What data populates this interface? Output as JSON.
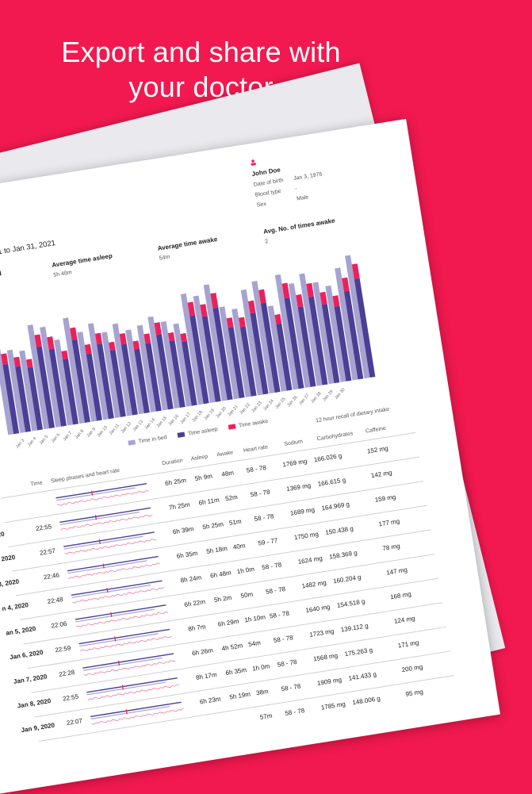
{
  "headline": {
    "line1": "Export and share with",
    "line2": "your doctor"
  },
  "report": {
    "title_fragment": "t",
    "date_range": "21 to Jan 31, 2021",
    "patient": {
      "name": "John Doe",
      "dob_label": "Date of birth",
      "dob_value": "Jan 3, 1976",
      "blood_label": "Blood type",
      "blood_value": "-",
      "sex_label": "Sex",
      "sex_value": "Male"
    },
    "stats": [
      {
        "label": "ed",
        "value": ""
      },
      {
        "label": "Average time asleep",
        "value": "5h 48m"
      },
      {
        "label": "Average time awake",
        "value": "54m"
      },
      {
        "label": "Avg. No. of times awake",
        "value": "2"
      }
    ],
    "legend": [
      {
        "label": "Time in bed",
        "color": "#a7a3d0"
      },
      {
        "label": "Time asleep",
        "color": "#4a3f94"
      },
      {
        "label": "Time awake",
        "color": "#ef1f5c"
      }
    ],
    "x_ticks": [
      "Jan 3",
      "Jan 4",
      "Jan 5",
      "Jan 6",
      "Jan 7",
      "Jan 8",
      "Jan 9",
      "Jan 10",
      "Jan 11",
      "Jan 12",
      "Jan 13",
      "Jan 14",
      "Jan 15",
      "Jan 16",
      "Jan 17",
      "Jan 18",
      "Jan 19",
      "Jan 20",
      "Jan 21",
      "Jan 22",
      "Jan 23",
      "Jan 24",
      "Jan 25",
      "Jan 26",
      "Jan 27",
      "Jan 28",
      "Jan 29",
      "Jan 30"
    ],
    "dietary_header": "12 hour recall of dietary intake",
    "columns": {
      "time": "Time",
      "phases": "Sleep phases and heart rate",
      "duration": "Duration",
      "asleep": "Asleep",
      "awake": "Awake",
      "heart_rate": "Heart rate",
      "sodium": "Sodium",
      "carbs": "Carbohydrates",
      "caffeine": "Caffeine"
    },
    "rows": [
      {
        "date": "",
        "time": "",
        "duration": "6h 25m",
        "asleep": "5h 9m",
        "awake": "48m",
        "hr": "58 - 78",
        "sodium": "1769 mg",
        "carbs": "166.026 g",
        "caffeine": "152 mg"
      },
      {
        "date": "2020",
        "time": "22:55",
        "duration": "7h 25m",
        "asleep": "6h 11m",
        "awake": "52m",
        "hr": "58 - 78",
        "sodium": "1369 mg",
        "carbs": "166.615 g",
        "caffeine": "142 mg"
      },
      {
        "date": "2, 2020",
        "time": "22:57",
        "duration": "6h 39m",
        "asleep": "5h 25m",
        "awake": "51m",
        "hr": "58 - 78",
        "sodium": "1689 mg",
        "carbs": "164.969 g",
        "caffeine": "159 mg"
      },
      {
        "date": "3, 2020",
        "time": "22:46",
        "duration": "6h 35m",
        "asleep": "5h 18m",
        "awake": "40m",
        "hr": "59 - 77",
        "sodium": "1750 mg",
        "carbs": "150.438 g",
        "caffeine": "177 mg"
      },
      {
        "date": "n 4, 2020",
        "time": "22:48",
        "duration": "8h 24m",
        "asleep": "6h 48m",
        "awake": "1h 0m",
        "hr": "58 - 78",
        "sodium": "1624 mg",
        "carbs": "158.369 g",
        "caffeine": "78 mg"
      },
      {
        "date": "an 5, 2020",
        "time": "22:06",
        "duration": "6h 22m",
        "asleep": "5h 2m",
        "awake": "50m",
        "hr": "58 - 78",
        "sodium": "1482 mg",
        "carbs": "160.204 g",
        "caffeine": "147 mg"
      },
      {
        "date": "Jan 6, 2020",
        "time": "22:59",
        "duration": "8h 7m",
        "asleep": "6h 29m",
        "awake": "1h 10m",
        "hr": "58 - 78",
        "sodium": "1640 mg",
        "carbs": "154.518 g",
        "caffeine": "168 mg"
      },
      {
        "date": "Jan 7, 2020",
        "time": "22:28",
        "duration": "6h 26m",
        "asleep": "4h 52m",
        "awake": "54m",
        "hr": "58 - 78",
        "sodium": "1723 mg",
        "carbs": "139.112 g",
        "caffeine": "124 mg"
      },
      {
        "date": "Jan 8, 2020",
        "time": "22:55",
        "duration": "8h 17m",
        "asleep": "6h 35m",
        "awake": "1h 0m",
        "hr": "58 - 78",
        "sodium": "1568 mg",
        "carbs": "175.263 g",
        "caffeine": "171 mg"
      },
      {
        "date": "Jan 9, 2020",
        "time": "22:07",
        "duration": "6h 23m",
        "asleep": "5h 19m",
        "awake": "38m",
        "hr": "58 - 78",
        "sodium": "1909 mg",
        "carbs": "141.433 g",
        "caffeine": "200 mg"
      },
      {
        "date": "",
        "time": "",
        "duration": "",
        "asleep": "",
        "awake": "57m",
        "hr": "58 - 78",
        "sodium": "1785 mg",
        "carbs": "148.006 g",
        "caffeine": "95 mg"
      }
    ],
    "chart_data": {
      "type": "bar",
      "categories": [
        "",
        "Jan 3",
        "Jan 4",
        "Jan 5",
        "Jan 6",
        "Jan 7",
        "Jan 8",
        "Jan 9",
        "Jan 10",
        "Jan 11",
        "Jan 12",
        "Jan 13",
        "Jan 14",
        "Jan 15",
        "Jan 16",
        "Jan 17",
        "Jan 18",
        "Jan 19",
        "Jan 20",
        "Jan 21",
        "Jan 22",
        "Jan 23",
        "Jan 24",
        "Jan 25",
        "Jan 26",
        "Jan 27",
        "Jan 28",
        "Jan 29",
        "Jan 30",
        "",
        ""
      ],
      "series": [
        {
          "name": "Time in bed",
          "values": [
            6.5,
            6.2,
            6.0,
            7.8,
            7.5,
            6.4,
            7.9,
            6.7,
            7.2,
            6.4,
            6.9,
            6.3,
            6.5,
            7.0,
            6.5,
            6.2,
            8.3,
            8.0,
            8.7,
            6.9,
            6.6,
            7.9,
            8.4,
            6.4,
            8.6,
            7.8,
            8.4,
            7.6,
            7.2,
            8.4,
            9.2
          ]
        },
        {
          "name": "Time asleep",
          "values": [
            5.2,
            4.9,
            4.7,
            6.1,
            5.8,
            4.9,
            6.2,
            5.0,
            5.6,
            5.0,
            5.3,
            4.8,
            5.1,
            5.6,
            5.0,
            4.8,
            6.6,
            6.4,
            6.9,
            5.3,
            5.2,
            6.1,
            6.7,
            5.0,
            6.8,
            6.0,
            6.6,
            5.9,
            5.6,
            6.6,
            7.4
          ]
        },
        {
          "name": "Time awake",
          "values": [
            0.8,
            0.7,
            0.6,
            0.9,
            0.9,
            0.6,
            0.9,
            0.7,
            0.8,
            0.6,
            0.8,
            0.6,
            0.7,
            0.9,
            0.6,
            0.6,
            1.0,
            0.9,
            1.1,
            0.7,
            0.7,
            0.9,
            1.0,
            0.7,
            1.1,
            0.9,
            1.0,
            0.9,
            0.8,
            1.0,
            1.1
          ]
        }
      ]
    }
  }
}
